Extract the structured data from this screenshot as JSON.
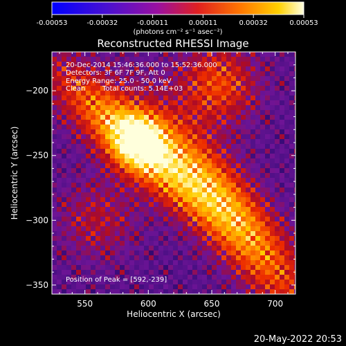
{
  "chart_data": {
    "type": "heatmap",
    "title": "Reconstructed RHESSI Image",
    "xlabel": "Heliocentric X (arcsec)",
    "ylabel": "Heliocentric Y (arcsec)",
    "xlim": [
      524,
      716
    ],
    "ylim": [
      -357,
      -170
    ],
    "xticks": [
      550,
      600,
      650,
      700
    ],
    "yticks": [
      -200,
      -250,
      -300,
      -350
    ],
    "colorbar": {
      "label": "(photons cm⁻² s⁻¹ asec⁻²)",
      "ticks": [
        "-0.00053",
        "-0.00032",
        "-0.00011",
        "0.00011",
        "0.00032",
        "0.00053"
      ],
      "range": [
        -0.00053,
        0.00053
      ]
    },
    "annotations": [
      "20-Dec-2014 15:46:36.000 to 15:52:36.000",
      "Detectors: 3F 6F 7F 9F, Att 0",
      "Energy Range: 25.0 - 50.0 keV",
      "Clean",
      "Total counts: 5.14E+03"
    ],
    "peak_label": "Position of Peak = [592,-239]",
    "peak": [
      592,
      -239
    ],
    "grid": false
  },
  "footer": {
    "timestamp": "20-May-2022 20:53"
  }
}
